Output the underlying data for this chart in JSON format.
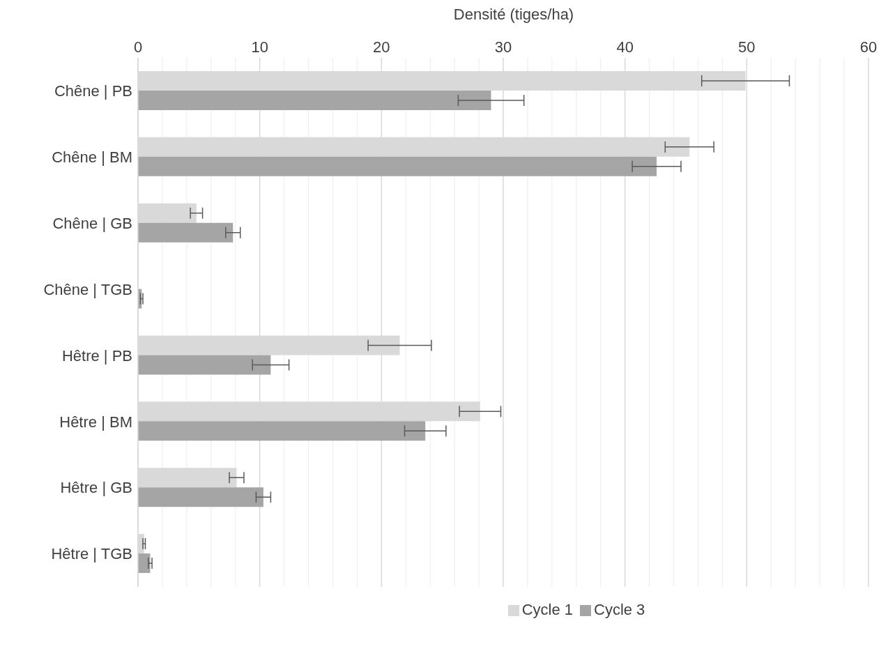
{
  "chart_data": {
    "type": "bar",
    "orientation": "horizontal",
    "xlabel": "Densité (tiges/ha)",
    "categories": [
      "Chêne | PB",
      "Chêne | BM",
      "Chêne | GB",
      "Chêne | TGB",
      "Hêtre | PB",
      "Hêtre | BM",
      "Hêtre | GB",
      "Hêtre | TGB"
    ],
    "series": [
      {
        "name": "Cycle 1",
        "color": "#d9d9d9",
        "values": [
          49.9,
          45.3,
          4.8,
          null,
          21.5,
          28.1,
          8.1,
          0.5
        ],
        "errors": [
          3.6,
          2.0,
          0.5,
          null,
          2.6,
          1.7,
          0.6,
          0.1
        ]
      },
      {
        "name": "Cycle 3",
        "color": "#a5a5a5",
        "values": [
          29.0,
          42.6,
          7.8,
          0.3,
          10.9,
          23.6,
          10.3,
          1.0
        ],
        "errors": [
          2.7,
          2.0,
          0.6,
          0.1,
          1.5,
          1.7,
          0.6,
          0.15
        ]
      }
    ],
    "xlim": [
      0,
      60
    ],
    "xticks": [
      0,
      {
        "value": 2,
        "label": null
      },
      {
        "value": 4,
        "label": null
      },
      {
        "value": 6,
        "label": null
      },
      {
        "value": 8,
        "label": null
      },
      10,
      {
        "value": 12,
        "label": null
      },
      {
        "value": 14,
        "label": null
      },
      {
        "value": 16,
        "label": null
      },
      {
        "value": 18,
        "label": null
      },
      20,
      {
        "value": 22,
        "label": null
      },
      {
        "value": 24,
        "label": null
      },
      {
        "value": 26,
        "label": null
      },
      {
        "value": 28,
        "label": null
      },
      30,
      {
        "value": 32,
        "label": null
      },
      {
        "value": 34,
        "label": null
      },
      {
        "value": 36,
        "label": null
      },
      {
        "value": 38,
        "label": null
      },
      40,
      {
        "value": 42,
        "label": null
      },
      {
        "value": 44,
        "label": null
      },
      {
        "value": 46,
        "label": null
      },
      {
        "value": 48,
        "label": null
      },
      50,
      {
        "value": 52,
        "label": null
      },
      {
        "value": 54,
        "label": null
      },
      {
        "value": 56,
        "label": null
      },
      {
        "value": 58,
        "label": null
      },
      60
    ],
    "grid": "x",
    "legend": "bottom"
  }
}
